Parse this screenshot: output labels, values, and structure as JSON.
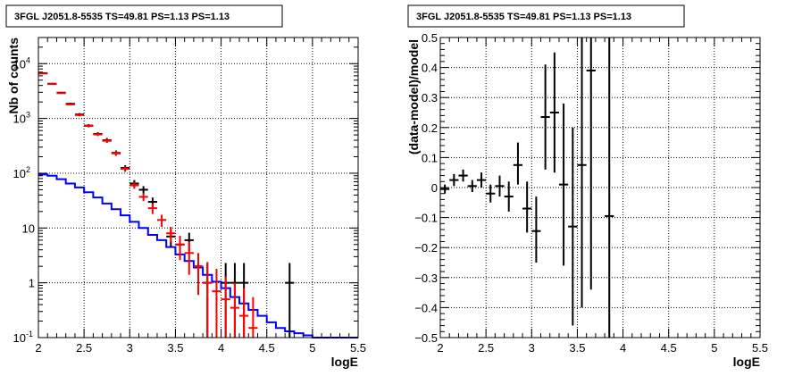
{
  "chart_data": [
    {
      "type": "scatter",
      "title": "3FGL J2051.8-5535 TS=49.81 PS=1.13 PS=1.13",
      "xlabel": "logE",
      "ylabel": "Nb of counts",
      "xlim": [
        2,
        5.5
      ],
      "ylim": [
        0.1,
        30000
      ],
      "yscale": "log",
      "grid": true,
      "x_ticks": [
        "2",
        "2.5",
        "3",
        "3.5",
        "4",
        "4.5",
        "5",
        "5.5"
      ],
      "y_ticks": [
        {
          "value": 0.1,
          "label": "10",
          "sup": "-1"
        },
        {
          "value": 1,
          "label": "1",
          "sup": ""
        },
        {
          "value": 10,
          "label": "10",
          "sup": ""
        },
        {
          "value": 100,
          "label": "10",
          "sup": "2"
        },
        {
          "value": 1000,
          "label": "10",
          "sup": "3"
        },
        {
          "value": 10000,
          "label": "10",
          "sup": "4"
        }
      ],
      "bin_edges": [
        2.0,
        2.1,
        2.2,
        2.3,
        2.4,
        2.5,
        2.6,
        2.7,
        2.8,
        2.9,
        3.0,
        3.1,
        3.2,
        3.3,
        3.4,
        3.5,
        3.6,
        3.7,
        3.8,
        3.9,
        4.0,
        4.1,
        4.2,
        4.3,
        4.4,
        4.5,
        4.6,
        4.7,
        4.8,
        4.9,
        5.0,
        5.1,
        5.2,
        5.3,
        5.4,
        5.5
      ],
      "series": [
        {
          "color": "#0000ff",
          "style": "step",
          "values": [
            95,
            90,
            78,
            65,
            55,
            45,
            36,
            28,
            22,
            17,
            13,
            10,
            7.5,
            6,
            4.5,
            3.3,
            2.5,
            1.9,
            1.4,
            1.05,
            0.8,
            0.55,
            0.42,
            0.32,
            0.25,
            0.19,
            0.15,
            0.13,
            0.12,
            0.11,
            0.1,
            0.1,
            0.1,
            0.1,
            0.1
          ]
        },
        {
          "color": "#000000",
          "style": "errorbar",
          "points": [
            {
              "x": 2.05,
              "y": 6700,
              "lo": 6550,
              "hi": 6850
            },
            {
              "x": 2.15,
              "y": 4300,
              "lo": 4170,
              "hi": 4430
            },
            {
              "x": 2.25,
              "y": 2950,
              "lo": 2840,
              "hi": 3060
            },
            {
              "x": 2.35,
              "y": 1850,
              "lo": 1760,
              "hi": 1940
            },
            {
              "x": 2.45,
              "y": 1180,
              "lo": 1110,
              "hi": 1250
            },
            {
              "x": 2.55,
              "y": 740,
              "lo": 690,
              "hi": 790
            },
            {
              "x": 2.65,
              "y": 520,
              "lo": 480,
              "hi": 560
            },
            {
              "x": 2.75,
              "y": 400,
              "lo": 360,
              "hi": 440
            },
            {
              "x": 2.85,
              "y": 235,
              "lo": 210,
              "hi": 260
            },
            {
              "x": 2.95,
              "y": 125,
              "lo": 110,
              "hi": 140
            },
            {
              "x": 3.05,
              "y": 65,
              "lo": 55,
              "hi": 75
            },
            {
              "x": 3.15,
              "y": 50,
              "lo": 42,
              "hi": 58
            },
            {
              "x": 3.25,
              "y": 30,
              "lo": 24,
              "hi": 36
            },
            {
              "x": 3.45,
              "y": 7,
              "lo": 4.5,
              "hi": 9.5
            },
            {
              "x": 3.55,
              "y": 5,
              "lo": 3,
              "hi": 7
            },
            {
              "x": 3.65,
              "y": 6,
              "lo": 3.8,
              "hi": 8.2
            },
            {
              "x": 3.75,
              "y": 2,
              "lo": 0.85,
              "hi": 3.4
            },
            {
              "x": 3.85,
              "y": 1,
              "lo": 0.1,
              "hi": 2.3
            },
            {
              "x": 4.05,
              "y": 1,
              "lo": 0.1,
              "hi": 2.3
            },
            {
              "x": 4.15,
              "y": 1,
              "lo": 0.1,
              "hi": 2.3
            },
            {
              "x": 4.25,
              "y": 1,
              "lo": 0.1,
              "hi": 2.3
            },
            {
              "x": 4.75,
              "y": 1,
              "lo": 0.1,
              "hi": 2.3
            }
          ]
        },
        {
          "color": "#ff0000",
          "style": "errorbar",
          "points": [
            {
              "x": 2.05,
              "y": 6600,
              "lo": 6450,
              "hi": 6750
            },
            {
              "x": 2.15,
              "y": 4250,
              "lo": 4130,
              "hi": 4370
            },
            {
              "x": 2.25,
              "y": 2900,
              "lo": 2800,
              "hi": 3000
            },
            {
              "x": 2.35,
              "y": 1800,
              "lo": 1720,
              "hi": 1880
            },
            {
              "x": 2.45,
              "y": 1150,
              "lo": 1090,
              "hi": 1210
            },
            {
              "x": 2.55,
              "y": 730,
              "lo": 685,
              "hi": 775
            },
            {
              "x": 2.65,
              "y": 510,
              "lo": 475,
              "hi": 545
            },
            {
              "x": 2.75,
              "y": 390,
              "lo": 360,
              "hi": 420
            },
            {
              "x": 2.85,
              "y": 230,
              "lo": 208,
              "hi": 252
            },
            {
              "x": 2.95,
              "y": 120,
              "lo": 106,
              "hi": 134
            },
            {
              "x": 3.05,
              "y": 60,
              "lo": 52,
              "hi": 68
            },
            {
              "x": 3.15,
              "y": 37,
              "lo": 31,
              "hi": 43
            },
            {
              "x": 3.25,
              "y": 23,
              "lo": 18,
              "hi": 28
            },
            {
              "x": 3.35,
              "y": 14,
              "lo": 10.5,
              "hi": 17.5
            },
            {
              "x": 3.45,
              "y": 8,
              "lo": 5.5,
              "hi": 10.5
            },
            {
              "x": 3.55,
              "y": 5,
              "lo": 2.6,
              "hi": 7.2
            },
            {
              "x": 3.65,
              "y": 3.5,
              "lo": 1.4,
              "hi": 5.6
            },
            {
              "x": 3.75,
              "y": 2,
              "lo": 0.6,
              "hi": 3.5
            },
            {
              "x": 3.85,
              "y": 1,
              "lo": 0.1,
              "hi": 2.4
            },
            {
              "x": 3.95,
              "y": 0.7,
              "lo": 0.1,
              "hi": 1.8
            },
            {
              "x": 4.05,
              "y": 0.5,
              "lo": 0.1,
              "hi": 1.3
            },
            {
              "x": 4.15,
              "y": 0.35,
              "lo": 0.1,
              "hi": 1.0
            },
            {
              "x": 4.25,
              "y": 0.25,
              "lo": 0.1,
              "hi": 0.8
            },
            {
              "x": 4.35,
              "y": 0.15,
              "lo": 0.1,
              "hi": 0.55
            }
          ]
        }
      ]
    },
    {
      "type": "scatter",
      "title": "3FGL J2051.8-5535 TS=49.81 PS=1.13 PS=1.13",
      "xlabel": "logE",
      "ylabel": "(data-model)/model",
      "xlim": [
        2,
        5.5
      ],
      "ylim": [
        -0.5,
        0.5
      ],
      "grid": true,
      "x_ticks": [
        "2",
        "2.5",
        "3",
        "3.5",
        "4",
        "4.5",
        "5",
        "5.5"
      ],
      "y_ticks": [
        "−0.5",
        "−0.4",
        "−0.3",
        "−0.2",
        "−0.1",
        "0",
        "0.1",
        "0.2",
        "0.3",
        "0.4",
        "0.5"
      ],
      "series": [
        {
          "color": "#000000",
          "style": "errorbar",
          "points": [
            {
              "x": 2.05,
              "y": -0.005,
              "lo": -0.02,
              "hi": 0.01
            },
            {
              "x": 2.15,
              "y": 0.025,
              "lo": 0.005,
              "hi": 0.045
            },
            {
              "x": 2.25,
              "y": 0.04,
              "lo": 0.02,
              "hi": 0.06
            },
            {
              "x": 2.35,
              "y": 0.005,
              "lo": -0.015,
              "hi": 0.025
            },
            {
              "x": 2.45,
              "y": 0.025,
              "lo": 0.0,
              "hi": 0.05
            },
            {
              "x": 2.55,
              "y": -0.02,
              "lo": -0.05,
              "hi": 0.01
            },
            {
              "x": 2.65,
              "y": 0.005,
              "lo": -0.03,
              "hi": 0.04
            },
            {
              "x": 2.75,
              "y": -0.03,
              "lo": -0.08,
              "hi": 0.02
            },
            {
              "x": 2.85,
              "y": 0.075,
              "lo": 0.01,
              "hi": 0.15
            },
            {
              "x": 2.95,
              "y": -0.07,
              "lo": -0.15,
              "hi": 0.02
            },
            {
              "x": 3.05,
              "y": -0.145,
              "lo": -0.25,
              "hi": -0.03
            },
            {
              "x": 3.15,
              "y": 0.235,
              "lo": 0.06,
              "hi": 0.41
            },
            {
              "x": 3.25,
              "y": 0.25,
              "lo": 0.05,
              "hi": 0.45
            },
            {
              "x": 3.35,
              "y": 0.01,
              "lo": -0.26,
              "hi": 0.28
            },
            {
              "x": 3.45,
              "y": -0.13,
              "lo": -0.46,
              "hi": 0.2
            },
            {
              "x": 3.55,
              "y": 0.075,
              "lo": -0.4,
              "hi": 0.5
            },
            {
              "x": 3.65,
              "y": 0.39,
              "lo": -0.34,
              "hi": 0.5
            },
            {
              "x": 3.85,
              "y": -0.095,
              "lo": -0.5,
              "hi": 0.5
            }
          ]
        }
      ]
    }
  ]
}
